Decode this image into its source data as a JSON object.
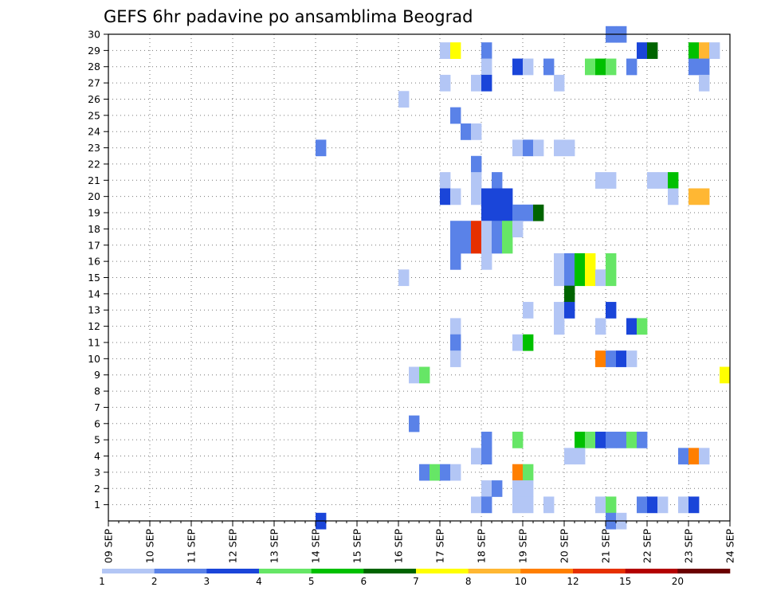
{
  "chart_data": {
    "type": "heatmap",
    "title": "GEFS 6hr padavine po ansamblima Beograd",
    "xlabel": "",
    "ylabel": "",
    "x_ticks": [
      "09 SEP",
      "10 SEP",
      "11 SEP",
      "12 SEP",
      "13 SEP",
      "14 SEP",
      "15 SEP",
      "16 SEP",
      "17 SEP",
      "18 SEP",
      "19 SEP",
      "20 SEP",
      "21 SEP",
      "22 SEP",
      "23 SEP",
      "24 SEP"
    ],
    "y_ticks": [
      1,
      2,
      3,
      4,
      5,
      6,
      7,
      8,
      9,
      10,
      11,
      12,
      13,
      14,
      15,
      16,
      17,
      18,
      19,
      20,
      21,
      22,
      23,
      24,
      25,
      26,
      27,
      28,
      29,
      30
    ],
    "xlim": [
      "09 SEP 00z",
      "24 SEP 00z"
    ],
    "ylim": [
      0,
      30
    ],
    "time_step_hours": 6,
    "grid": "dotted",
    "colorbar": {
      "placement": "bottom",
      "labels": [
        "1",
        "2",
        "3",
        "4",
        "5",
        "6",
        "7",
        "8",
        "10",
        "12",
        "15",
        "20"
      ],
      "colors": [
        "#b3c6f5",
        "#5a82e8",
        "#1a45d9",
        "#66e666",
        "#00c000",
        "#006400",
        "#ffff00",
        "#ffb733",
        "#ff7f00",
        "#e63000",
        "#b30000",
        "#6b0000"
      ]
    },
    "points": [
      {
        "member": 30,
        "day": 21,
        "hour": 0,
        "bin": 2
      },
      {
        "member": 30,
        "day": 21,
        "hour": 6,
        "bin": 2
      },
      {
        "member": 29,
        "day": 17,
        "hour": 0,
        "bin": 1
      },
      {
        "member": 29,
        "day": 17,
        "hour": 6,
        "bin": 7
      },
      {
        "member": 29,
        "day": 18,
        "hour": 0,
        "bin": 2
      },
      {
        "member": 29,
        "day": 21,
        "hour": 18,
        "bin": 3
      },
      {
        "member": 29,
        "day": 22,
        "hour": 0,
        "bin": 6
      },
      {
        "member": 29,
        "day": 23,
        "hour": 0,
        "bin": 5
      },
      {
        "member": 29,
        "day": 23,
        "hour": 6,
        "bin": 8
      },
      {
        "member": 29,
        "day": 23,
        "hour": 12,
        "bin": 1
      },
      {
        "member": 28,
        "day": 18,
        "hour": 0,
        "bin": 1
      },
      {
        "member": 28,
        "day": 18,
        "hour": 18,
        "bin": 3
      },
      {
        "member": 28,
        "day": 19,
        "hour": 0,
        "bin": 1
      },
      {
        "member": 28,
        "day": 19,
        "hour": 12,
        "bin": 2
      },
      {
        "member": 28,
        "day": 20,
        "hour": 12,
        "bin": 4
      },
      {
        "member": 28,
        "day": 20,
        "hour": 18,
        "bin": 5
      },
      {
        "member": 28,
        "day": 21,
        "hour": 0,
        "bin": 4
      },
      {
        "member": 28,
        "day": 21,
        "hour": 12,
        "bin": 2
      },
      {
        "member": 28,
        "day": 23,
        "hour": 0,
        "bin": 2
      },
      {
        "member": 28,
        "day": 23,
        "hour": 6,
        "bin": 2
      },
      {
        "member": 27,
        "day": 17,
        "hour": 0,
        "bin": 1
      },
      {
        "member": 27,
        "day": 17,
        "hour": 18,
        "bin": 1
      },
      {
        "member": 27,
        "day": 18,
        "hour": 0,
        "bin": 3
      },
      {
        "member": 27,
        "day": 19,
        "hour": 18,
        "bin": 1
      },
      {
        "member": 27,
        "day": 23,
        "hour": 6,
        "bin": 1
      },
      {
        "member": 26,
        "day": 16,
        "hour": 0,
        "bin": 1
      },
      {
        "member": 25,
        "day": 17,
        "hour": 6,
        "bin": 2
      },
      {
        "member": 24,
        "day": 17,
        "hour": 12,
        "bin": 2
      },
      {
        "member": 24,
        "day": 17,
        "hour": 18,
        "bin": 1
      },
      {
        "member": 23,
        "day": 14,
        "hour": 0,
        "bin": 2
      },
      {
        "member": 23,
        "day": 18,
        "hour": 18,
        "bin": 1
      },
      {
        "member": 23,
        "day": 19,
        "hour": 0,
        "bin": 2
      },
      {
        "member": 23,
        "day": 19,
        "hour": 6,
        "bin": 1
      },
      {
        "member": 23,
        "day": 19,
        "hour": 18,
        "bin": 1
      },
      {
        "member": 23,
        "day": 20,
        "hour": 0,
        "bin": 1
      },
      {
        "member": 22,
        "day": 17,
        "hour": 18,
        "bin": 2
      },
      {
        "member": 21,
        "day": 17,
        "hour": 0,
        "bin": 1
      },
      {
        "member": 21,
        "day": 17,
        "hour": 18,
        "bin": 1
      },
      {
        "member": 21,
        "day": 18,
        "hour": 6,
        "bin": 2
      },
      {
        "member": 21,
        "day": 20,
        "hour": 18,
        "bin": 1
      },
      {
        "member": 21,
        "day": 21,
        "hour": 0,
        "bin": 1
      },
      {
        "member": 21,
        "day": 22,
        "hour": 0,
        "bin": 1
      },
      {
        "member": 21,
        "day": 22,
        "hour": 6,
        "bin": 1
      },
      {
        "member": 21,
        "day": 22,
        "hour": 12,
        "bin": 5
      },
      {
        "member": 20,
        "day": 17,
        "hour": 0,
        "bin": 3
      },
      {
        "member": 20,
        "day": 17,
        "hour": 6,
        "bin": 1
      },
      {
        "member": 20,
        "day": 17,
        "hour": 18,
        "bin": 1
      },
      {
        "member": 20,
        "day": 18,
        "hour": 0,
        "bin": 3
      },
      {
        "member": 20,
        "day": 18,
        "hour": 6,
        "bin": 3
      },
      {
        "member": 20,
        "day": 18,
        "hour": 12,
        "bin": 3
      },
      {
        "member": 20,
        "day": 22,
        "hour": 12,
        "bin": 1
      },
      {
        "member": 20,
        "day": 23,
        "hour": 0,
        "bin": 8
      },
      {
        "member": 20,
        "day": 23,
        "hour": 6,
        "bin": 8
      },
      {
        "member": 19,
        "day": 18,
        "hour": 0,
        "bin": 3
      },
      {
        "member": 19,
        "day": 18,
        "hour": 6,
        "bin": 3
      },
      {
        "member": 19,
        "day": 18,
        "hour": 12,
        "bin": 3
      },
      {
        "member": 19,
        "day": 18,
        "hour": 18,
        "bin": 2
      },
      {
        "member": 19,
        "day": 19,
        "hour": 0,
        "bin": 2
      },
      {
        "member": 19,
        "day": 19,
        "hour": 6,
        "bin": 6
      },
      {
        "member": 18,
        "day": 17,
        "hour": 6,
        "bin": 2
      },
      {
        "member": 18,
        "day": 17,
        "hour": 12,
        "bin": 2
      },
      {
        "member": 18,
        "day": 17,
        "hour": 18,
        "bin": 10
      },
      {
        "member": 18,
        "day": 18,
        "hour": 0,
        "bin": 1
      },
      {
        "member": 18,
        "day": 18,
        "hour": 6,
        "bin": 2
      },
      {
        "member": 18,
        "day": 18,
        "hour": 12,
        "bin": 4
      },
      {
        "member": 18,
        "day": 18,
        "hour": 18,
        "bin": 1
      },
      {
        "member": 17,
        "day": 17,
        "hour": 6,
        "bin": 2
      },
      {
        "member": 17,
        "day": 17,
        "hour": 12,
        "bin": 2
      },
      {
        "member": 17,
        "day": 17,
        "hour": 18,
        "bin": 10
      },
      {
        "member": 17,
        "day": 18,
        "hour": 0,
        "bin": 1
      },
      {
        "member": 17,
        "day": 18,
        "hour": 6,
        "bin": 2
      },
      {
        "member": 17,
        "day": 18,
        "hour": 12,
        "bin": 4
      },
      {
        "member": 16,
        "day": 17,
        "hour": 6,
        "bin": 2
      },
      {
        "member": 16,
        "day": 18,
        "hour": 0,
        "bin": 1
      },
      {
        "member": 15,
        "day": 16,
        "hour": 0,
        "bin": 1
      },
      {
        "member": 15,
        "day": 19,
        "hour": 18,
        "bin": 1
      },
      {
        "member": 15,
        "day": 20,
        "hour": 0,
        "bin": 2
      },
      {
        "member": 15,
        "day": 20,
        "hour": 6,
        "bin": 5
      },
      {
        "member": 15,
        "day": 20,
        "hour": 12,
        "bin": 7
      },
      {
        "member": 15,
        "day": 20,
        "hour": 18,
        "bin": 1
      },
      {
        "member": 15,
        "day": 21,
        "hour": 0,
        "bin": 4
      },
      {
        "member": 16,
        "day": 19,
        "hour": 18,
        "bin": 1
      },
      {
        "member": 16,
        "day": 20,
        "hour": 0,
        "bin": 2
      },
      {
        "member": 16,
        "day": 20,
        "hour": 6,
        "bin": 5
      },
      {
        "member": 16,
        "day": 20,
        "hour": 12,
        "bin": 7
      },
      {
        "member": 16,
        "day": 21,
        "hour": 0,
        "bin": 4
      },
      {
        "member": 14,
        "day": 20,
        "hour": 0,
        "bin": 6
      },
      {
        "member": 13,
        "day": 19,
        "hour": 0,
        "bin": 1
      },
      {
        "member": 13,
        "day": 19,
        "hour": 18,
        "bin": 1
      },
      {
        "member": 13,
        "day": 20,
        "hour": 0,
        "bin": 3
      },
      {
        "member": 13,
        "day": 21,
        "hour": 0,
        "bin": 3
      },
      {
        "member": 12,
        "day": 17,
        "hour": 6,
        "bin": 1
      },
      {
        "member": 12,
        "day": 19,
        "hour": 18,
        "bin": 1
      },
      {
        "member": 12,
        "day": 20,
        "hour": 18,
        "bin": 1
      },
      {
        "member": 12,
        "day": 21,
        "hour": 12,
        "bin": 3
      },
      {
        "member": 12,
        "day": 21,
        "hour": 18,
        "bin": 4
      },
      {
        "member": 11,
        "day": 17,
        "hour": 6,
        "bin": 2
      },
      {
        "member": 11,
        "day": 18,
        "hour": 18,
        "bin": 1
      },
      {
        "member": 11,
        "day": 19,
        "hour": 0,
        "bin": 5
      },
      {
        "member": 10,
        "day": 17,
        "hour": 6,
        "bin": 1
      },
      {
        "member": 10,
        "day": 20,
        "hour": 18,
        "bin": 9
      },
      {
        "member": 10,
        "day": 21,
        "hour": 0,
        "bin": 2
      },
      {
        "member": 10,
        "day": 21,
        "hour": 6,
        "bin": 3
      },
      {
        "member": 10,
        "day": 21,
        "hour": 12,
        "bin": 1
      },
      {
        "member": 9,
        "day": 16,
        "hour": 6,
        "bin": 1
      },
      {
        "member": 9,
        "day": 16,
        "hour": 12,
        "bin": 4
      },
      {
        "member": 9,
        "day": 23,
        "hour": 18,
        "bin": 7
      },
      {
        "member": 6,
        "day": 16,
        "hour": 6,
        "bin": 2
      },
      {
        "member": 5,
        "day": 18,
        "hour": 0,
        "bin": 2
      },
      {
        "member": 5,
        "day": 18,
        "hour": 18,
        "bin": 4
      },
      {
        "member": 5,
        "day": 20,
        "hour": 6,
        "bin": 5
      },
      {
        "member": 5,
        "day": 20,
        "hour": 12,
        "bin": 4
      },
      {
        "member": 5,
        "day": 20,
        "hour": 18,
        "bin": 3
      },
      {
        "member": 5,
        "day": 21,
        "hour": 0,
        "bin": 2
      },
      {
        "member": 5,
        "day": 21,
        "hour": 6,
        "bin": 2
      },
      {
        "member": 5,
        "day": 21,
        "hour": 12,
        "bin": 4
      },
      {
        "member": 5,
        "day": 21,
        "hour": 18,
        "bin": 2
      },
      {
        "member": 4,
        "day": 17,
        "hour": 18,
        "bin": 1
      },
      {
        "member": 4,
        "day": 18,
        "hour": 0,
        "bin": 2
      },
      {
        "member": 4,
        "day": 20,
        "hour": 0,
        "bin": 1
      },
      {
        "member": 4,
        "day": 20,
        "hour": 6,
        "bin": 1
      },
      {
        "member": 4,
        "day": 22,
        "hour": 18,
        "bin": 2
      },
      {
        "member": 4,
        "day": 23,
        "hour": 0,
        "bin": 9
      },
      {
        "member": 4,
        "day": 23,
        "hour": 6,
        "bin": 1
      },
      {
        "member": 3,
        "day": 16,
        "hour": 12,
        "bin": 2
      },
      {
        "member": 3,
        "day": 16,
        "hour": 18,
        "bin": 4
      },
      {
        "member": 3,
        "day": 17,
        "hour": 0,
        "bin": 2
      },
      {
        "member": 3,
        "day": 17,
        "hour": 6,
        "bin": 1
      },
      {
        "member": 3,
        "day": 18,
        "hour": 18,
        "bin": 9
      },
      {
        "member": 3,
        "day": 19,
        "hour": 0,
        "bin": 4
      },
      {
        "member": 2,
        "day": 18,
        "hour": 0,
        "bin": 1
      },
      {
        "member": 2,
        "day": 18,
        "hour": 6,
        "bin": 2
      },
      {
        "member": 2,
        "day": 18,
        "hour": 18,
        "bin": 1
      },
      {
        "member": 2,
        "day": 19,
        "hour": 0,
        "bin": 1
      },
      {
        "member": 1,
        "day": 17,
        "hour": 18,
        "bin": 1
      },
      {
        "member": 1,
        "day": 18,
        "hour": 0,
        "bin": 2
      },
      {
        "member": 1,
        "day": 18,
        "hour": 18,
        "bin": 1
      },
      {
        "member": 1,
        "day": 19,
        "hour": 0,
        "bin": 1
      },
      {
        "member": 1,
        "day": 19,
        "hour": 12,
        "bin": 1
      },
      {
        "member": 1,
        "day": 20,
        "hour": 18,
        "bin": 1
      },
      {
        "member": 1,
        "day": 21,
        "hour": 0,
        "bin": 4
      },
      {
        "member": 1,
        "day": 21,
        "hour": 18,
        "bin": 2
      },
      {
        "member": 1,
        "day": 22,
        "hour": 0,
        "bin": 3
      },
      {
        "member": 1,
        "day": 22,
        "hour": 6,
        "bin": 1
      },
      {
        "member": 1,
        "day": 22,
        "hour": 18,
        "bin": 1
      },
      {
        "member": 1,
        "day": 23,
        "hour": 0,
        "bin": 3
      },
      {
        "member": 0,
        "day": 14,
        "hour": 0,
        "bin": 3
      },
      {
        "member": 0,
        "day": 21,
        "hour": 0,
        "bin": 2
      },
      {
        "member": 0,
        "day": 21,
        "hour": 6,
        "bin": 1
      }
    ]
  }
}
